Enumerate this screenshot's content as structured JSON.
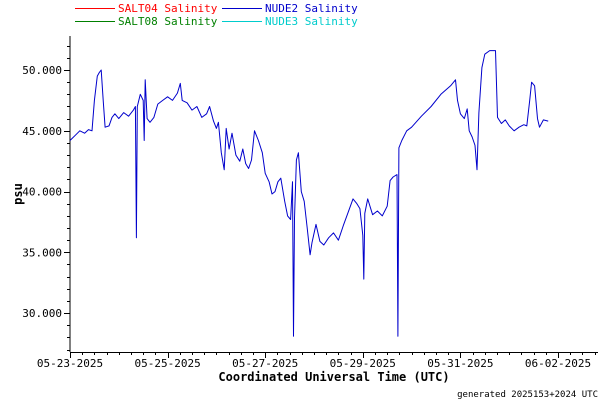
{
  "chart_data": {
    "type": "line",
    "xlabel": "Coordinated Universal Time (UTC)",
    "ylabel": "psu",
    "x_tick_labels": [
      "05-23-2025",
      "05-25-2025",
      "05-27-2025",
      "05-29-2025",
      "05-31-2025",
      "06-02-2025"
    ],
    "x_tick_days": [
      0,
      2,
      4,
      6,
      8,
      10
    ],
    "xlim_days": [
      0,
      10.8
    ],
    "y_tick_labels": [
      "30.000",
      "35.000",
      "40.000",
      "45.000",
      "50.000"
    ],
    "y_ticks": [
      30,
      35,
      40,
      45,
      50
    ],
    "ylim": [
      26.8,
      52.8
    ],
    "grid": false,
    "legend_position": "top-left",
    "legend": [
      {
        "name": "SALT04 Salinity",
        "color": "#ff0000"
      },
      {
        "name": "NUDE2 Salinity",
        "color": "#0000cc"
      },
      {
        "name": "SALT08 Salinity",
        "color": "#008000"
      },
      {
        "name": "NUDE3 Salinity",
        "color": "#00cccc"
      }
    ],
    "series": [
      {
        "name": "NUDE2 Salinity",
        "color": "#0000cc",
        "points": [
          [
            0.0,
            44.2
          ],
          [
            0.1,
            44.6
          ],
          [
            0.2,
            45.0
          ],
          [
            0.3,
            44.8
          ],
          [
            0.38,
            45.1
          ],
          [
            0.45,
            45.0
          ],
          [
            0.5,
            47.5
          ],
          [
            0.56,
            49.5
          ],
          [
            0.6,
            49.8
          ],
          [
            0.64,
            50.0
          ],
          [
            0.68,
            47.5
          ],
          [
            0.72,
            45.3
          ],
          [
            0.8,
            45.4
          ],
          [
            0.86,
            46.1
          ],
          [
            0.92,
            46.4
          ],
          [
            1.0,
            46.0
          ],
          [
            1.1,
            46.5
          ],
          [
            1.2,
            46.2
          ],
          [
            1.3,
            46.7
          ],
          [
            1.34,
            47.0
          ],
          [
            1.36,
            36.2
          ],
          [
            1.38,
            47.0
          ],
          [
            1.44,
            48.0
          ],
          [
            1.5,
            47.5
          ],
          [
            1.52,
            44.2
          ],
          [
            1.54,
            49.2
          ],
          [
            1.58,
            46.0
          ],
          [
            1.64,
            45.7
          ],
          [
            1.72,
            46.1
          ],
          [
            1.8,
            47.2
          ],
          [
            1.9,
            47.5
          ],
          [
            2.0,
            47.8
          ],
          [
            2.1,
            47.5
          ],
          [
            2.2,
            48.1
          ],
          [
            2.26,
            48.9
          ],
          [
            2.3,
            47.5
          ],
          [
            2.4,
            47.3
          ],
          [
            2.5,
            46.7
          ],
          [
            2.6,
            47.0
          ],
          [
            2.7,
            46.1
          ],
          [
            2.8,
            46.4
          ],
          [
            2.86,
            47.0
          ],
          [
            2.94,
            45.8
          ],
          [
            3.0,
            45.2
          ],
          [
            3.04,
            45.7
          ],
          [
            3.1,
            43.2
          ],
          [
            3.16,
            41.8
          ],
          [
            3.2,
            45.2
          ],
          [
            3.26,
            43.5
          ],
          [
            3.32,
            44.8
          ],
          [
            3.4,
            43.0
          ],
          [
            3.48,
            42.5
          ],
          [
            3.54,
            43.5
          ],
          [
            3.6,
            42.3
          ],
          [
            3.66,
            41.9
          ],
          [
            3.72,
            42.6
          ],
          [
            3.78,
            45.0
          ],
          [
            3.86,
            44.2
          ],
          [
            3.94,
            43.2
          ],
          [
            4.0,
            41.5
          ],
          [
            4.08,
            40.8
          ],
          [
            4.14,
            39.8
          ],
          [
            4.2,
            40.0
          ],
          [
            4.26,
            40.8
          ],
          [
            4.32,
            41.1
          ],
          [
            4.4,
            39.2
          ],
          [
            4.46,
            38.0
          ],
          [
            4.52,
            37.7
          ],
          [
            4.56,
            40.8
          ],
          [
            4.58,
            28.1
          ],
          [
            4.6,
            37.8
          ],
          [
            4.64,
            42.6
          ],
          [
            4.68,
            43.2
          ],
          [
            4.74,
            40.0
          ],
          [
            4.8,
            39.2
          ],
          [
            4.86,
            37.0
          ],
          [
            4.92,
            34.8
          ],
          [
            4.96,
            35.8
          ],
          [
            5.04,
            37.3
          ],
          [
            5.12,
            35.9
          ],
          [
            5.2,
            35.6
          ],
          [
            5.3,
            36.2
          ],
          [
            5.4,
            36.6
          ],
          [
            5.5,
            36.0
          ],
          [
            5.6,
            37.2
          ],
          [
            5.7,
            38.3
          ],
          [
            5.8,
            39.4
          ],
          [
            5.88,
            39.0
          ],
          [
            5.94,
            38.6
          ],
          [
            6.0,
            36.4
          ],
          [
            6.02,
            32.8
          ],
          [
            6.04,
            38.2
          ],
          [
            6.1,
            39.4
          ],
          [
            6.2,
            38.1
          ],
          [
            6.3,
            38.4
          ],
          [
            6.4,
            38.0
          ],
          [
            6.5,
            38.8
          ],
          [
            6.56,
            40.9
          ],
          [
            6.62,
            41.2
          ],
          [
            6.7,
            41.4
          ],
          [
            6.72,
            28.1
          ],
          [
            6.74,
            43.6
          ],
          [
            6.8,
            44.2
          ],
          [
            6.9,
            45.0
          ],
          [
            7.0,
            45.3
          ],
          [
            7.2,
            46.2
          ],
          [
            7.4,
            47.0
          ],
          [
            7.6,
            48.0
          ],
          [
            7.8,
            48.7
          ],
          [
            7.9,
            49.2
          ],
          [
            7.94,
            47.5
          ],
          [
            8.0,
            46.4
          ],
          [
            8.08,
            46.0
          ],
          [
            8.14,
            46.8
          ],
          [
            8.18,
            45.0
          ],
          [
            8.24,
            44.5
          ],
          [
            8.3,
            43.8
          ],
          [
            8.34,
            41.8
          ],
          [
            8.38,
            46.5
          ],
          [
            8.44,
            50.2
          ],
          [
            8.5,
            51.3
          ],
          [
            8.6,
            51.6
          ],
          [
            8.72,
            51.6
          ],
          [
            8.76,
            46.1
          ],
          [
            8.84,
            45.6
          ],
          [
            8.92,
            45.9
          ],
          [
            9.0,
            45.4
          ],
          [
            9.1,
            45.0
          ],
          [
            9.2,
            45.3
          ],
          [
            9.3,
            45.5
          ],
          [
            9.36,
            45.4
          ],
          [
            9.42,
            47.5
          ],
          [
            9.46,
            49.0
          ],
          [
            9.52,
            48.7
          ],
          [
            9.58,
            46.0
          ],
          [
            9.62,
            45.3
          ],
          [
            9.7,
            45.9
          ],
          [
            9.8,
            45.8
          ]
        ]
      }
    ]
  },
  "footer": {
    "generated_note": "generated 2025153+2024 UTC"
  }
}
